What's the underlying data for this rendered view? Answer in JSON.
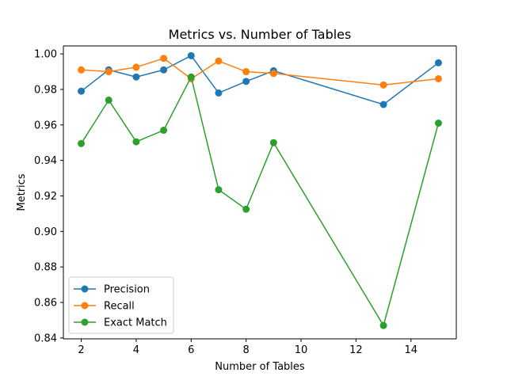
{
  "chart_data": {
    "type": "line",
    "title": "Metrics vs. Number of Tables",
    "xlabel": "Number of Tables",
    "ylabel": "Metrics",
    "x": [
      2,
      3,
      4,
      5,
      6,
      7,
      8,
      9,
      13,
      15
    ],
    "xlim": [
      1.35,
      15.65
    ],
    "ylim": [
      0.8395,
      1.0045
    ],
    "xticks": [
      2,
      4,
      6,
      8,
      10,
      12,
      14
    ],
    "xtick_labels": [
      "2",
      "4",
      "6",
      "8",
      "10",
      "12",
      "14"
    ],
    "yticks": [
      0.84,
      0.86,
      0.88,
      0.9,
      0.92,
      0.94,
      0.96,
      0.98,
      1.0
    ],
    "ytick_labels": [
      "0.84",
      "0.86",
      "0.88",
      "0.90",
      "0.92",
      "0.94",
      "0.96",
      "0.98",
      "1.00"
    ],
    "grid": false,
    "legend_position": "lower-left",
    "series": [
      {
        "name": "Precision",
        "color": "#1f77b4",
        "values": [
          0.979,
          0.991,
          0.987,
          0.991,
          0.999,
          0.978,
          0.9845,
          0.9905,
          0.9715,
          0.995
        ]
      },
      {
        "name": "Recall",
        "color": "#ff7f0e",
        "values": [
          0.991,
          0.99,
          0.9925,
          0.9975,
          0.986,
          0.996,
          0.99,
          0.989,
          0.9825,
          0.986
        ]
      },
      {
        "name": "Exact Match",
        "color": "#2ca02c",
        "values": [
          0.9495,
          0.974,
          0.9505,
          0.957,
          0.987,
          0.9235,
          0.9125,
          0.95,
          0.847,
          0.961
        ]
      }
    ]
  }
}
